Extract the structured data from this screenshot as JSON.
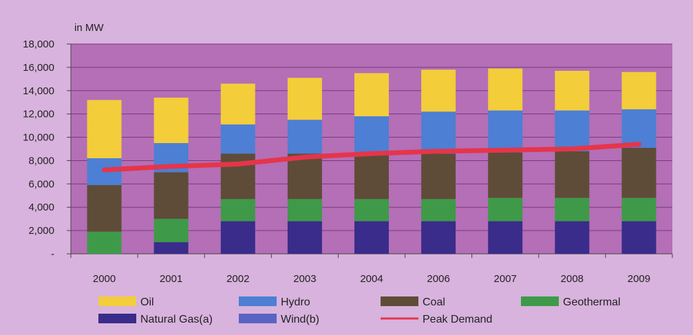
{
  "colors": {
    "background": "#d8b3dd",
    "plot_area": "#b46fb6",
    "gridline": "#7a3a7c",
    "natural_gas": "#3a2c8a",
    "geothermal": "#3e9a48",
    "coal": "#5e4c38",
    "wind": "#5a64c4",
    "hydro": "#4d7fd4",
    "oil": "#f3cd3a",
    "peak_demand": "#e5354a"
  },
  "chart_data": {
    "type": "bar",
    "stacked": true,
    "unit_label": "in MW",
    "categories": [
      "2000",
      "2001",
      "2002",
      "2003",
      "2004",
      "2006",
      "2007",
      "2008",
      "2009"
    ],
    "ylim": [
      0,
      18000
    ],
    "yticks": [
      0,
      2000,
      4000,
      6000,
      8000,
      10000,
      12000,
      14000,
      16000,
      18000
    ],
    "ytick_labels": [
      "-",
      "2,000",
      "4,000",
      "6,000",
      "8,000",
      "10,000",
      "12,000",
      "14,000",
      "16,000",
      "18,000"
    ],
    "grid": true,
    "legend_position": "bottom",
    "series": [
      {
        "name": "Natural Gas(a)",
        "key": "natural_gas",
        "values": [
          0,
          1000,
          2800,
          2800,
          2800,
          2800,
          2800,
          2800,
          2800
        ]
      },
      {
        "name": "Geothermal",
        "key": "geothermal",
        "values": [
          1900,
          2000,
          1900,
          1900,
          1900,
          1900,
          2000,
          2000,
          2000
        ]
      },
      {
        "name": "Coal",
        "key": "coal",
        "values": [
          4000,
          4000,
          3900,
          3900,
          3900,
          3900,
          3900,
          4000,
          4300
        ]
      },
      {
        "name": "Wind(b)",
        "key": "wind",
        "values": [
          0,
          0,
          0,
          0,
          0,
          0,
          0,
          0,
          0
        ]
      },
      {
        "name": "Hydro",
        "key": "hydro",
        "values": [
          2300,
          2500,
          2500,
          2900,
          3200,
          3600,
          3600,
          3500,
          3300
        ]
      },
      {
        "name": "Oil",
        "key": "oil",
        "values": [
          5000,
          3900,
          3500,
          3600,
          3700,
          3600,
          3600,
          3400,
          3200
        ]
      }
    ],
    "line_series": {
      "name": "Peak Demand",
      "key": "peak_demand",
      "values": [
        7200,
        7500,
        7700,
        8300,
        8600,
        8800,
        8900,
        9000,
        9400
      ]
    },
    "legend": [
      {
        "label": "Oil",
        "key": "oil",
        "kind": "box"
      },
      {
        "label": "Hydro",
        "key": "hydro",
        "kind": "box"
      },
      {
        "label": "Coal",
        "key": "coal",
        "kind": "box"
      },
      {
        "label": "Geothermal",
        "key": "geothermal",
        "kind": "box"
      },
      {
        "label": "Natural Gas(a)",
        "key": "natural_gas",
        "kind": "box"
      },
      {
        "label": "Wind(b)",
        "key": "wind",
        "kind": "box"
      },
      {
        "label": "Peak Demand",
        "key": "peak_demand",
        "kind": "line"
      }
    ]
  }
}
